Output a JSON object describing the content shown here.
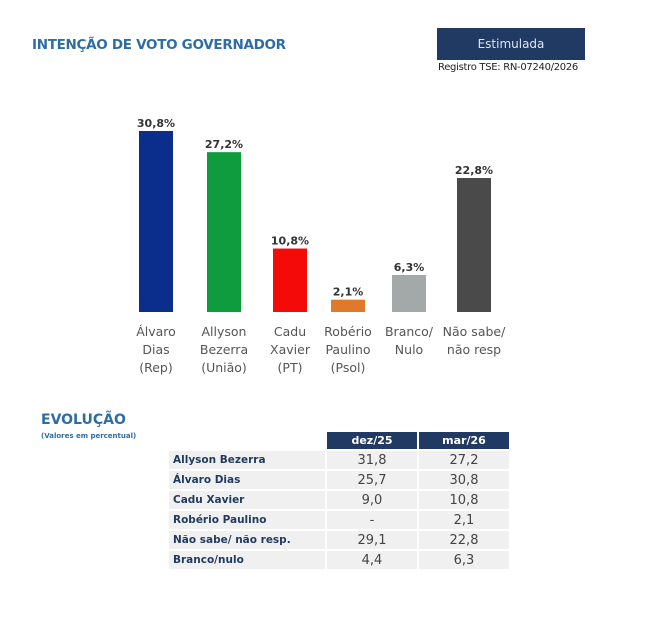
{
  "header": {
    "title": "INTENÇÃO DE VOTO GOVERNADOR",
    "badge": "Estimulada",
    "registro": "Registro TSE: RN-07240/2026"
  },
  "chart_data": {
    "type": "bar",
    "title": "INTENÇÃO DE VOTO GOVERNADOR",
    "categories": [
      [
        "Álvaro",
        "Dias",
        "(Rep)"
      ],
      [
        "Allyson",
        "Bezerra",
        "(União)"
      ],
      [
        "Cadu",
        "Xavier",
        "(PT)"
      ],
      [
        "Robério",
        "Paulino",
        "(Psol)"
      ],
      [
        "Branco/",
        "Nulo"
      ],
      [
        "Não sabe/",
        "não resp"
      ]
    ],
    "values": [
      30.8,
      27.2,
      10.8,
      2.1,
      6.3,
      22.8
    ],
    "labels": [
      "30,8%",
      "27,2%",
      "10,8%",
      "2,1%",
      "6,3%",
      "22,8%"
    ],
    "colors": [
      "#0b2d8c",
      "#0e9c3e",
      "#f50a0a",
      "#e07a2a",
      "#a3a8a8",
      "#4a4a4a"
    ],
    "ylim": [
      0,
      31
    ]
  },
  "evolucao": {
    "title": "EVOLUÇÃO",
    "subtitle": "(Valores em percentual)",
    "columns": [
      "dez/25",
      "mar/26"
    ],
    "rows": [
      {
        "name": "Allyson Bezerra",
        "v": [
          "31,8",
          "27,2"
        ]
      },
      {
        "name": "Álvaro Dias",
        "v": [
          "25,7",
          "30,8"
        ]
      },
      {
        "name": "Cadu Xavier",
        "v": [
          "9,0",
          "10,8"
        ]
      },
      {
        "name": "Robério Paulino",
        "v": [
          "-",
          "2,1"
        ]
      },
      {
        "name": "Não sabe/ não resp.",
        "v": [
          "29,1",
          "22,8"
        ]
      },
      {
        "name": "Branco/nulo",
        "v": [
          "4,4",
          "6,3"
        ]
      }
    ]
  }
}
